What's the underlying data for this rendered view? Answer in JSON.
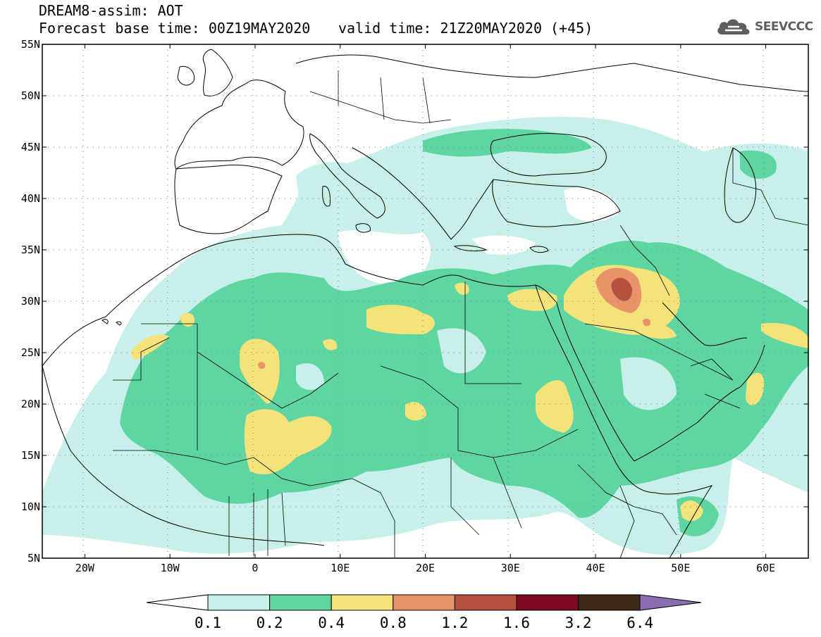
{
  "header": {
    "model_title": "DREAM8-assim: AOT",
    "base_time": "Forecast base time: 00Z19MAY2020",
    "valid_time": "valid time: 21Z20MAY2020 (+45)",
    "logo_text": "SEEVCCC",
    "logo_icon": "cloud-icon"
  },
  "map": {
    "lon_range": [
      -25,
      65
    ],
    "lat_range": [
      5,
      55
    ],
    "lat_labels": [
      "55N",
      "50N",
      "45N",
      "40N",
      "35N",
      "30N",
      "25N",
      "20N",
      "15N",
      "10N",
      "5N"
    ],
    "lon_labels": [
      "20W",
      "10W",
      "0",
      "10E",
      "20E",
      "30E",
      "40E",
      "50E",
      "60E"
    ]
  },
  "colorbar": {
    "levels": [
      "0.1",
      "0.2",
      "0.4",
      "0.8",
      "1.2",
      "1.6",
      "3.2",
      "6.4"
    ],
    "colors": [
      "#c6f0e9",
      "#5fd6a2",
      "#f4e27a",
      "#e8936a",
      "#b4513f",
      "#7d0a22",
      "#3d2a18",
      "#8c6eb0"
    ]
  }
}
